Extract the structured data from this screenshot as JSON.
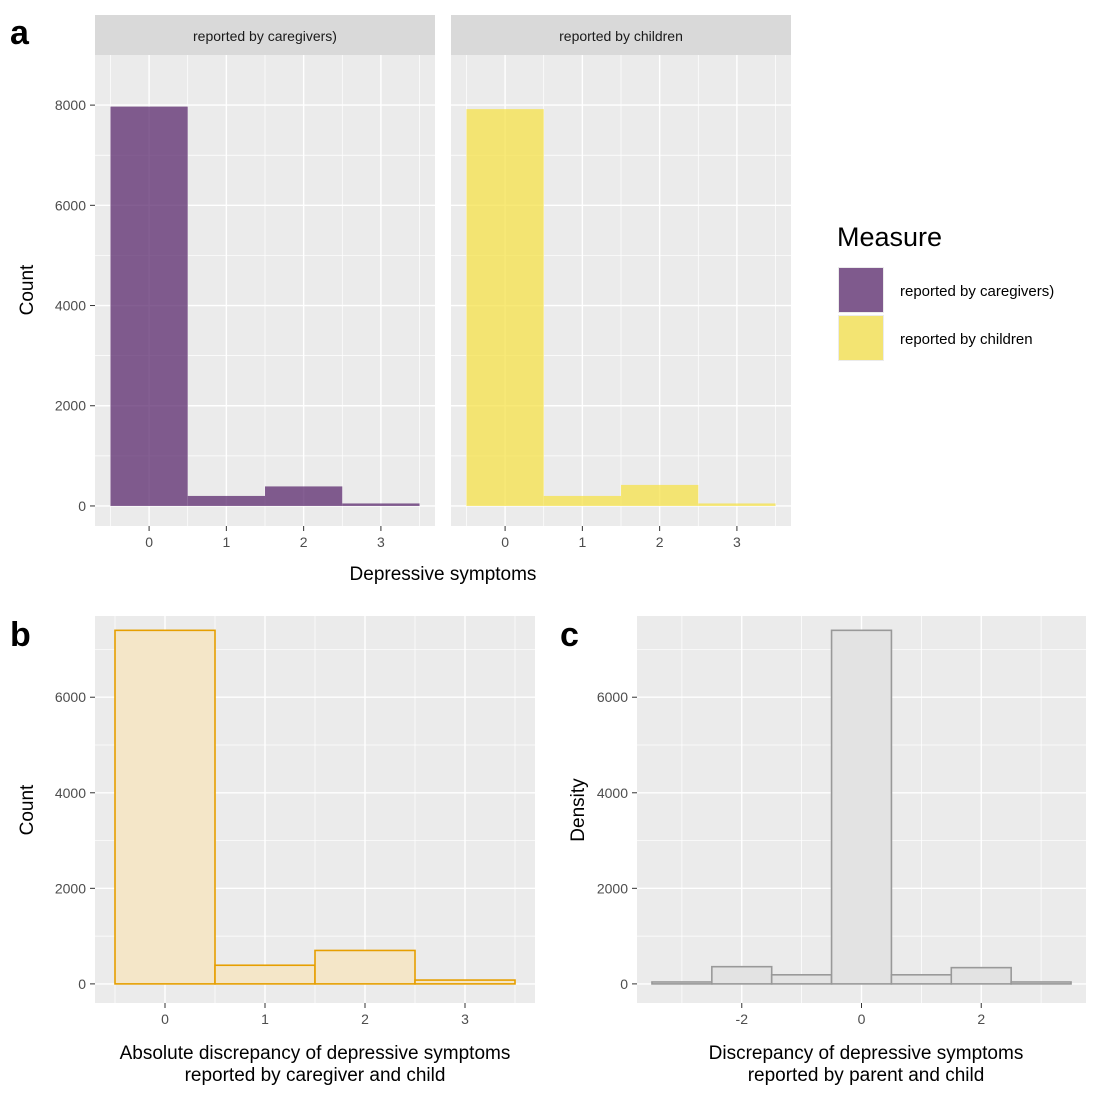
{
  "tags": {
    "a": "a",
    "b": "b",
    "c": "c"
  },
  "chart_data": [
    {
      "id": "a",
      "type": "bar",
      "facets": [
        {
          "strip": "reported by caregivers)",
          "color": "#5b2a6e",
          "opacity": 0.75,
          "categories": [
            0,
            1,
            2,
            3
          ],
          "values": [
            7970,
            200,
            390,
            50
          ]
        },
        {
          "strip": "reported by children",
          "color": "#f5e14a",
          "opacity": 0.75,
          "categories": [
            0,
            1,
            2,
            3
          ],
          "values": [
            7920,
            200,
            420,
            50
          ]
        }
      ],
      "xlabel": "Depressive symptoms",
      "ylabel": "Count",
      "xlim": [
        -0.7,
        3.7
      ],
      "ylim": [
        -400,
        9000
      ],
      "yticks": [
        0,
        2000,
        4000,
        6000,
        8000
      ],
      "xticks": [
        0,
        1,
        2,
        3
      ],
      "grid": true,
      "legend": {
        "title": "Measure",
        "position": "right",
        "items": [
          {
            "label": "reported by caregivers)",
            "color": "#5b2a6e"
          },
          {
            "label": "reported by children",
            "color": "#f5e14a"
          }
        ]
      }
    },
    {
      "id": "b",
      "type": "bar",
      "categories": [
        0,
        1,
        2,
        3
      ],
      "values": [
        7400,
        390,
        700,
        80
      ],
      "fill": "#f4e6c8",
      "stroke": "#e69f00",
      "xlabel": "Absolute discrepancy of depressive symptoms\nreported by caregiver and child",
      "ylabel": "Count",
      "xlim": [
        -0.7,
        3.7
      ],
      "ylim": [
        -400,
        7700
      ],
      "yticks": [
        0,
        2000,
        4000,
        6000
      ],
      "xticks": [
        0,
        1,
        2,
        3
      ],
      "grid": true
    },
    {
      "id": "c",
      "type": "bar",
      "categories": [
        -3,
        -2,
        -1,
        0,
        1,
        2,
        3
      ],
      "values": [
        40,
        360,
        190,
        7400,
        190,
        340,
        40
      ],
      "fill": "#e3e3e3",
      "stroke": "#999999",
      "xlabel": "Discrepancy of depressive symptoms\nreported by parent and child",
      "ylabel": "Density",
      "xlim": [
        -3.75,
        3.75
      ],
      "ylim": [
        -400,
        7700
      ],
      "yticks": [
        0,
        2000,
        4000,
        6000
      ],
      "xticks": [
        -2,
        0,
        2
      ],
      "grid": true
    }
  ]
}
